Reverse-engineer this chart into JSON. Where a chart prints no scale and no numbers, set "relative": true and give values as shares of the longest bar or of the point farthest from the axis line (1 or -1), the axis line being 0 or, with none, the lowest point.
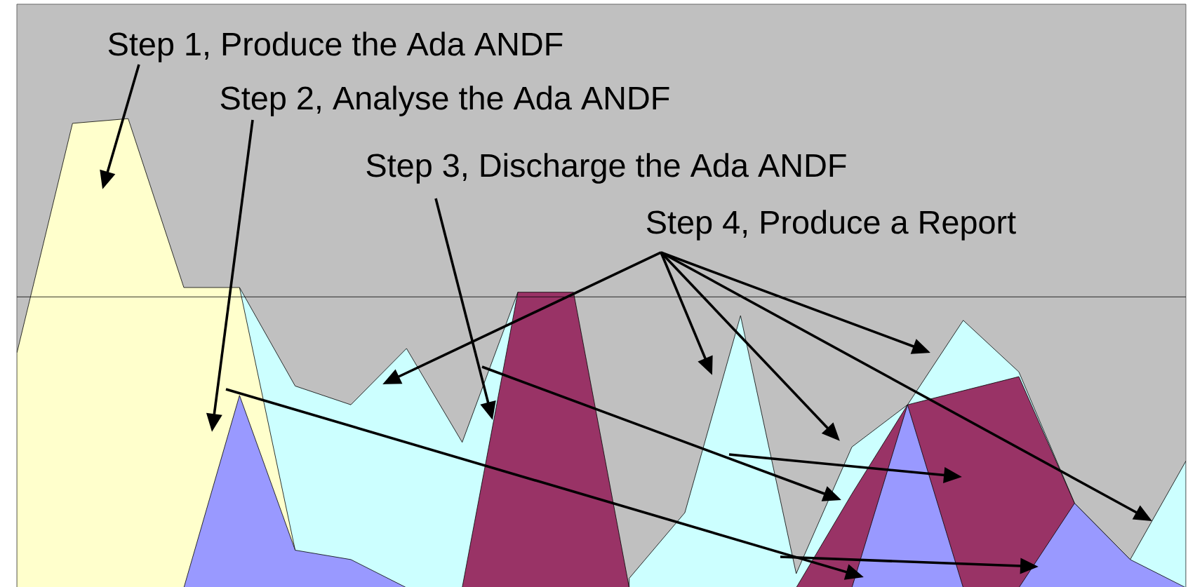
{
  "chart_data": {
    "type": "area",
    "relative": true,
    "categories": [
      null,
      null,
      null,
      null,
      null,
      null,
      null,
      null,
      null,
      null,
      null,
      null,
      null,
      null,
      null,
      null,
      null,
      null,
      null,
      null,
      null,
      null
    ],
    "series": [
      {
        "color": "#ccffff",
        "values": [
          null,
          null,
          null,
          null,
          0.64,
          0.43,
          0.39,
          0.51,
          0.31,
          0.63,
          null,
          0.02,
          0.16,
          0.58,
          0.03,
          0.3,
          0.39,
          0.57,
          0.46,
          0.18,
          0.06,
          0.27
        ]
      },
      {
        "color": "#993366",
        "values": [
          null,
          null,
          null,
          null,
          null,
          null,
          null,
          null,
          0,
          0.63,
          0.63,
          0,
          null,
          null,
          0,
          0.2,
          0.39,
          0.42,
          0.45,
          0.18,
          null,
          null
        ]
      },
      {
        "color": "#ffffcc",
        "values": [
          0.5,
          0.99,
          1,
          0.64,
          0.64,
          0.08,
          null,
          null,
          null,
          null,
          null,
          null,
          null,
          null,
          null,
          null,
          null,
          null,
          null,
          null,
          null,
          null
        ]
      },
      {
        "color": "#9999ff",
        "values": [
          null,
          null,
          null,
          0,
          0.41,
          0.08,
          0.06,
          0,
          null,
          null,
          null,
          null,
          null,
          null,
          null,
          0,
          0.39,
          0,
          0,
          0.18,
          0.06,
          0
        ]
      }
    ],
    "ref_lines": [
      {
        "axis": "y",
        "value": 0.62,
        "color": "#000000"
      }
    ],
    "annotations": [
      "Step 1, Produce the Ada ANDF",
      "Step 2, Analyse the Ada ANDF",
      "Step 3, Discharge the Ada ANDF",
      "Step 4, Produce a Report"
    ]
  }
}
